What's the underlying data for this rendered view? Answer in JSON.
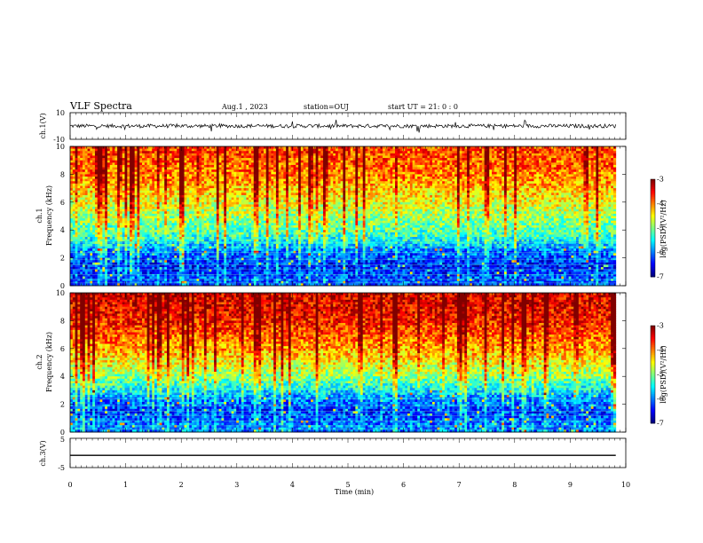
{
  "header": {
    "title": "VLF Spectra",
    "date": "Aug.1 , 2023",
    "station": "station=OUJ",
    "start": "start UT = 21: 0 : 0"
  },
  "chart_data": [
    {
      "type": "line",
      "ylabel": "ch.1(V)",
      "ylim": [
        -10,
        10
      ],
      "yticks": [
        "10",
        "-10"
      ],
      "xlim": [
        0,
        10
      ],
      "baseline": 0,
      "description_values": "broadband noise trace centered near 0 V with sporadic spikes"
    },
    {
      "type": "heatmap",
      "ylabel": "ch.1",
      "ylabel2": "Frequency (kHz)",
      "ylim": [
        0,
        10
      ],
      "yticks": [
        "0",
        "2",
        "4",
        "6",
        "8",
        "10"
      ],
      "xlim": [
        0,
        10
      ],
      "colorbar": {
        "label": "log(PSD)(V²/Hz)",
        "range": [
          -7,
          -3
        ],
        "ticks": [
          "-3",
          "-4",
          "-5",
          "-6",
          "-7"
        ]
      },
      "band_profile": [
        {
          "freq_khz": 0.5,
          "level": -6.2
        },
        {
          "freq_khz": 1.5,
          "level": -6.4
        },
        {
          "freq_khz": 2.5,
          "level": -6.0
        },
        {
          "freq_khz": 3.5,
          "level": -5.3
        },
        {
          "freq_khz": 4.5,
          "level": -5.0
        },
        {
          "freq_khz": 5.5,
          "level": -4.7
        },
        {
          "freq_khz": 6.5,
          "level": -4.4
        },
        {
          "freq_khz": 7.5,
          "level": -4.1
        },
        {
          "freq_khz": 8.5,
          "level": -3.9
        },
        {
          "freq_khz": 9.5,
          "level": -3.8
        }
      ]
    },
    {
      "type": "heatmap",
      "ylabel": "ch.2",
      "ylabel2": "Frequency (kHz)",
      "ylim": [
        0,
        10
      ],
      "yticks": [
        "0",
        "2",
        "4",
        "6",
        "8",
        "10"
      ],
      "xlim": [
        0,
        10
      ],
      "colorbar": {
        "label": "log(PSD)(V²/Hz)",
        "range": [
          -7,
          -3
        ],
        "ticks": [
          "-3",
          "-4",
          "-5",
          "-6",
          "-7"
        ]
      },
      "band_profile": [
        {
          "freq_khz": 0.5,
          "level": -6.0
        },
        {
          "freq_khz": 1.5,
          "level": -6.3
        },
        {
          "freq_khz": 2.5,
          "level": -5.9
        },
        {
          "freq_khz": 3.5,
          "level": -5.2
        },
        {
          "freq_khz": 4.5,
          "level": -4.7
        },
        {
          "freq_khz": 5.5,
          "level": -4.3
        },
        {
          "freq_khz": 6.5,
          "level": -4.0
        },
        {
          "freq_khz": 7.5,
          "level": -3.7
        },
        {
          "freq_khz": 8.5,
          "level": -3.5
        },
        {
          "freq_khz": 9.5,
          "level": -3.4
        }
      ]
    },
    {
      "type": "line",
      "ylabel": "ch.3(V)",
      "ylim": [
        -5,
        5
      ],
      "yticks": [
        "5",
        "-5"
      ],
      "xlim": [
        0,
        10
      ],
      "constant_value": -0.8
    }
  ],
  "x_axis": {
    "label": "Time (min)",
    "ticks": [
      "0",
      "1",
      "2",
      "3",
      "4",
      "5",
      "6",
      "7",
      "8",
      "9",
      "10"
    ]
  },
  "colors": {
    "trace": "#000000",
    "background": "#ffffff"
  }
}
